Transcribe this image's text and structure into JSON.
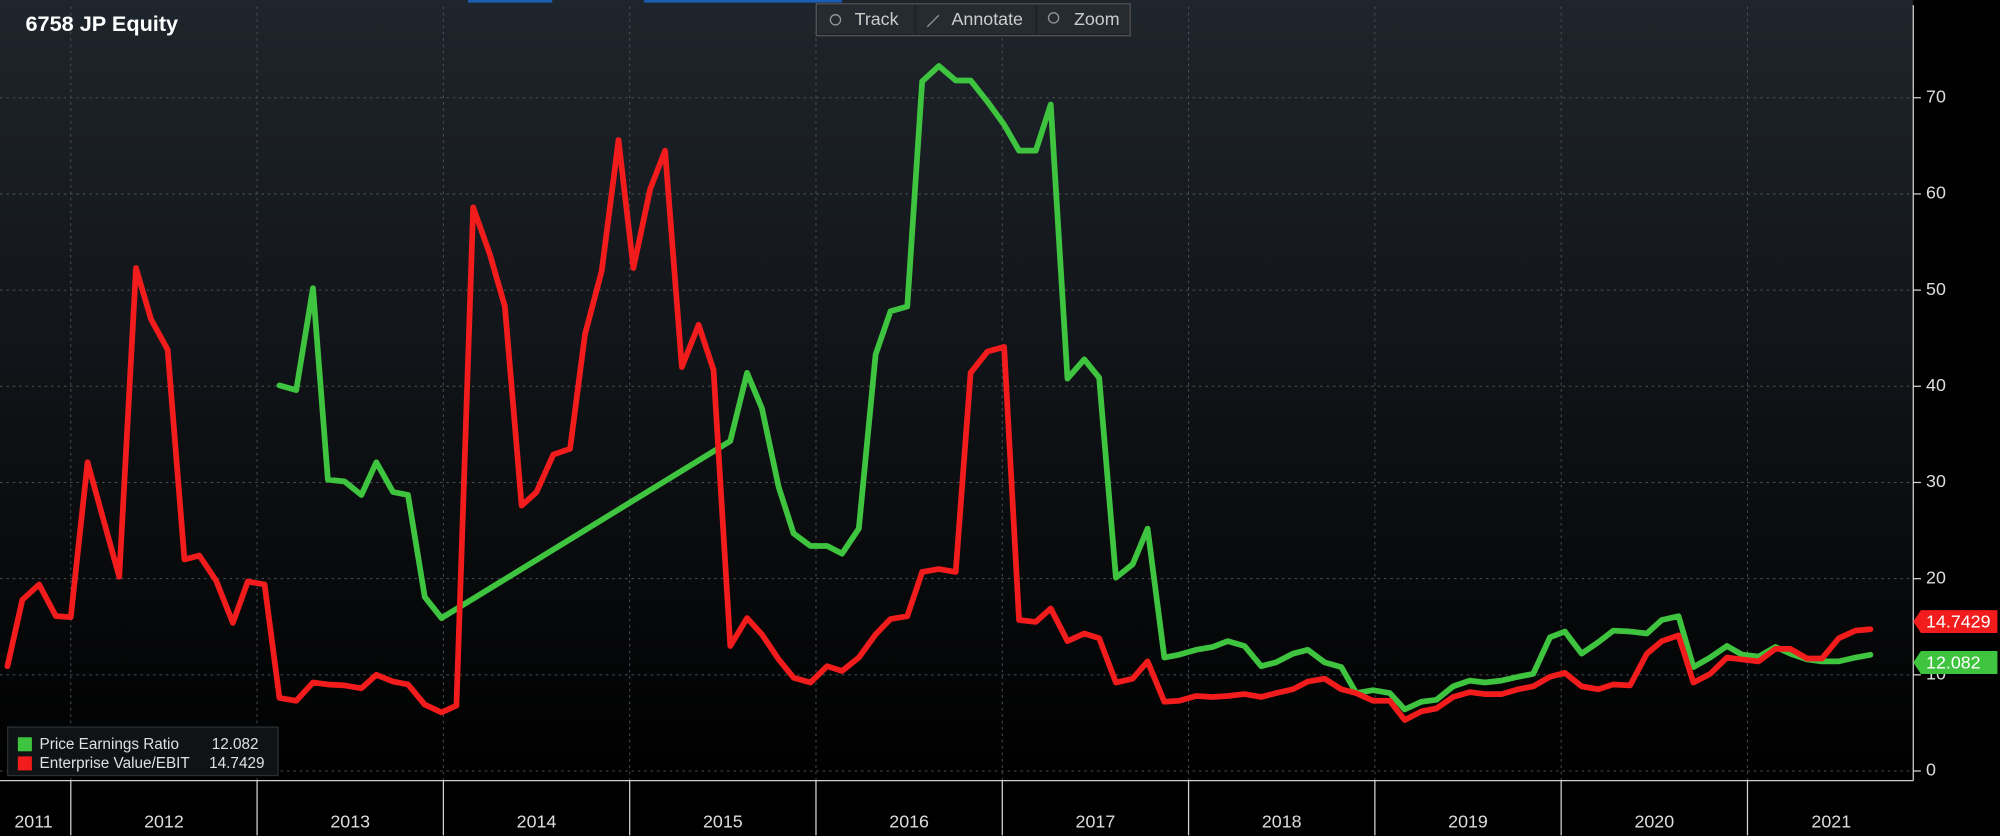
{
  "chart_data": {
    "type": "line",
    "title": "6758 JP Equity",
    "toolbar": [
      "Track",
      "Annotate",
      "Zoom"
    ],
    "xlim": [
      2011.62,
      2021.89
    ],
    "xgrid": [
      2012,
      2013,
      2014,
      2015,
      2016,
      2017,
      2018,
      2019,
      2020,
      2021
    ],
    "xticks": [
      {
        "value": 2011.8,
        "label": "2011"
      },
      {
        "value": 2012.5,
        "label": "2012"
      },
      {
        "value": 2013.5,
        "label": "2013"
      },
      {
        "value": 2014.5,
        "label": "2014"
      },
      {
        "value": 2015.5,
        "label": "2015"
      },
      {
        "value": 2016.5,
        "label": "2016"
      },
      {
        "value": 2017.5,
        "label": "2017"
      },
      {
        "value": 2018.5,
        "label": "2018"
      },
      {
        "value": 2019.5,
        "label": "2019"
      },
      {
        "value": 2020.5,
        "label": "2020"
      },
      {
        "value": 2021.45,
        "label": "2021"
      }
    ],
    "ylim": [
      -1,
      79.5
    ],
    "yticks": [
      0,
      10,
      20,
      30,
      40,
      50,
      60,
      70
    ],
    "grid": true,
    "legend": "bottom-left",
    "series": [
      {
        "name": "Price Earnings Ratio",
        "color": "#3ec43e",
        "x": [
          2013.12,
          2013.21,
          2013.3,
          2013.38,
          2013.47,
          2013.56,
          2013.64,
          2013.73,
          2013.81,
          2013.9,
          2013.99,
          2015.54,
          2015.63,
          2015.71,
          2015.8,
          2015.88,
          2015.97,
          2016.06,
          2016.14,
          2016.23,
          2016.32,
          2016.4,
          2016.49,
          2016.57,
          2016.66,
          2016.75,
          2016.83,
          2016.92,
          2017.01,
          2017.09,
          2017.18,
          2017.26,
          2017.35,
          2017.44,
          2017.52,
          2017.61,
          2017.7,
          2017.78,
          2017.87,
          2017.95,
          2018.04,
          2018.13,
          2018.21,
          2018.3,
          2018.39,
          2018.47,
          2018.56,
          2018.64,
          2018.73,
          2018.82,
          2018.9,
          2018.99,
          2019.08,
          2019.16,
          2019.25,
          2019.33,
          2019.42,
          2019.51,
          2019.59,
          2019.68,
          2019.77,
          2019.85,
          2019.94,
          2020.02,
          2020.11,
          2020.2,
          2020.28,
          2020.37,
          2020.46,
          2020.54,
          2020.63,
          2020.71,
          2020.8,
          2020.89,
          2020.97,
          2021.06,
          2021.15,
          2021.23,
          2021.32,
          2021.4,
          2021.49,
          2021.58,
          2021.66
        ],
        "values": [
          40.1,
          39.6,
          50.2,
          30.3,
          30.1,
          28.7,
          32.1,
          29,
          28.7,
          18.1,
          15.9,
          34.3,
          41.4,
          37.7,
          29.5,
          24.7,
          23.4,
          23.4,
          22.6,
          25.2,
          43.3,
          47.8,
          48.3,
          71.7,
          73.3,
          71.8,
          71.8,
          69.6,
          67.2,
          64.5,
          64.5,
          69.3,
          40.8,
          42.8,
          40.9,
          20.1,
          21.5,
          25.2,
          11.8,
          12.1,
          12.6,
          12.9,
          13.5,
          13,
          10.9,
          11.3,
          12.2,
          12.6,
          11.3,
          10.8,
          8.1,
          8.4,
          8.1,
          6.4,
          7.2,
          7.4,
          8.8,
          9.4,
          9.2,
          9.4,
          9.8,
          10.1,
          13.9,
          14.5,
          12.2,
          13.4,
          14.6,
          14.5,
          14.3,
          15.7,
          16.1,
          10.8,
          11.8,
          13,
          12.1,
          11.9,
          12.9,
          12.2,
          11.6,
          11.4,
          11.4,
          11.8,
          12.082
        ]
      },
      {
        "name": "Enterprise Value/EBIT",
        "color": "#f21c1c",
        "x": [
          2011.66,
          2011.74,
          2011.83,
          2011.92,
          2012.0,
          2012.09,
          2012.18,
          2012.26,
          2012.35,
          2012.43,
          2012.52,
          2012.61,
          2012.69,
          2012.78,
          2012.87,
          2012.95,
          2013.04,
          2013.12,
          2013.21,
          2013.3,
          2013.38,
          2013.47,
          2013.56,
          2013.64,
          2013.73,
          2013.81,
          2013.9,
          2013.99,
          2014.07,
          2014.16,
          2014.25,
          2014.33,
          2014.42,
          2014.5,
          2014.59,
          2014.68,
          2014.76,
          2014.85,
          2014.94,
          2015.02,
          2015.11,
          2015.19,
          2015.28,
          2015.37,
          2015.45,
          2015.54,
          2015.63,
          2015.71,
          2015.8,
          2015.88,
          2015.97,
          2016.06,
          2016.14,
          2016.23,
          2016.32,
          2016.4,
          2016.49,
          2016.57,
          2016.66,
          2016.75,
          2016.83,
          2016.92,
          2017.01,
          2017.09,
          2017.18,
          2017.26,
          2017.35,
          2017.44,
          2017.52,
          2017.61,
          2017.7,
          2017.78,
          2017.87,
          2017.95,
          2018.04,
          2018.13,
          2018.21,
          2018.3,
          2018.39,
          2018.47,
          2018.56,
          2018.64,
          2018.73,
          2018.82,
          2018.9,
          2018.99,
          2019.08,
          2019.16,
          2019.25,
          2019.33,
          2019.42,
          2019.51,
          2019.59,
          2019.68,
          2019.77,
          2019.85,
          2019.94,
          2020.02,
          2020.11,
          2020.2,
          2020.28,
          2020.37,
          2020.46,
          2020.54,
          2020.63,
          2020.71,
          2020.8,
          2020.89,
          2020.97,
          2021.06,
          2021.15,
          2021.23,
          2021.32,
          2021.4,
          2021.49,
          2021.58,
          2021.66
        ],
        "values": [
          10.9,
          17.8,
          19.4,
          16.1,
          16,
          32.1,
          25.8,
          20.2,
          52.3,
          47,
          43.8,
          22,
          22.4,
          19.8,
          15.4,
          19.7,
          19.4,
          7.6,
          7.3,
          9.2,
          9,
          8.9,
          8.6,
          10,
          9.3,
          9,
          6.9,
          6.1,
          6.8,
          58.6,
          53.7,
          48.3,
          27.6,
          29,
          32.9,
          33.5,
          45.4,
          52,
          65.6,
          52.3,
          60.5,
          64.5,
          42,
          46.4,
          41.7,
          13,
          15.9,
          14.2,
          11.6,
          9.7,
          9.2,
          10.9,
          10.4,
          11.8,
          14.2,
          15.8,
          16.1,
          20.7,
          21,
          20.7,
          41.4,
          43.6,
          44.1,
          15.7,
          15.5,
          16.9,
          13.5,
          14.3,
          13.8,
          9.2,
          9.6,
          11.4,
          7.2,
          7.3,
          7.8,
          7.7,
          7.8,
          8,
          7.7,
          8.1,
          8.5,
          9.3,
          9.6,
          8.5,
          8.1,
          7.3,
          7.3,
          5.3,
          6.2,
          6.5,
          7.7,
          8.2,
          8,
          8,
          8.5,
          8.8,
          9.8,
          10.2,
          8.8,
          8.5,
          9,
          8.9,
          12.2,
          13.5,
          14.1,
          9.2,
          10.1,
          11.8,
          11.6,
          11.4,
          12.7,
          12.7,
          11.7,
          11.7,
          13.8,
          14.6,
          14.7429
        ]
      }
    ]
  }
}
